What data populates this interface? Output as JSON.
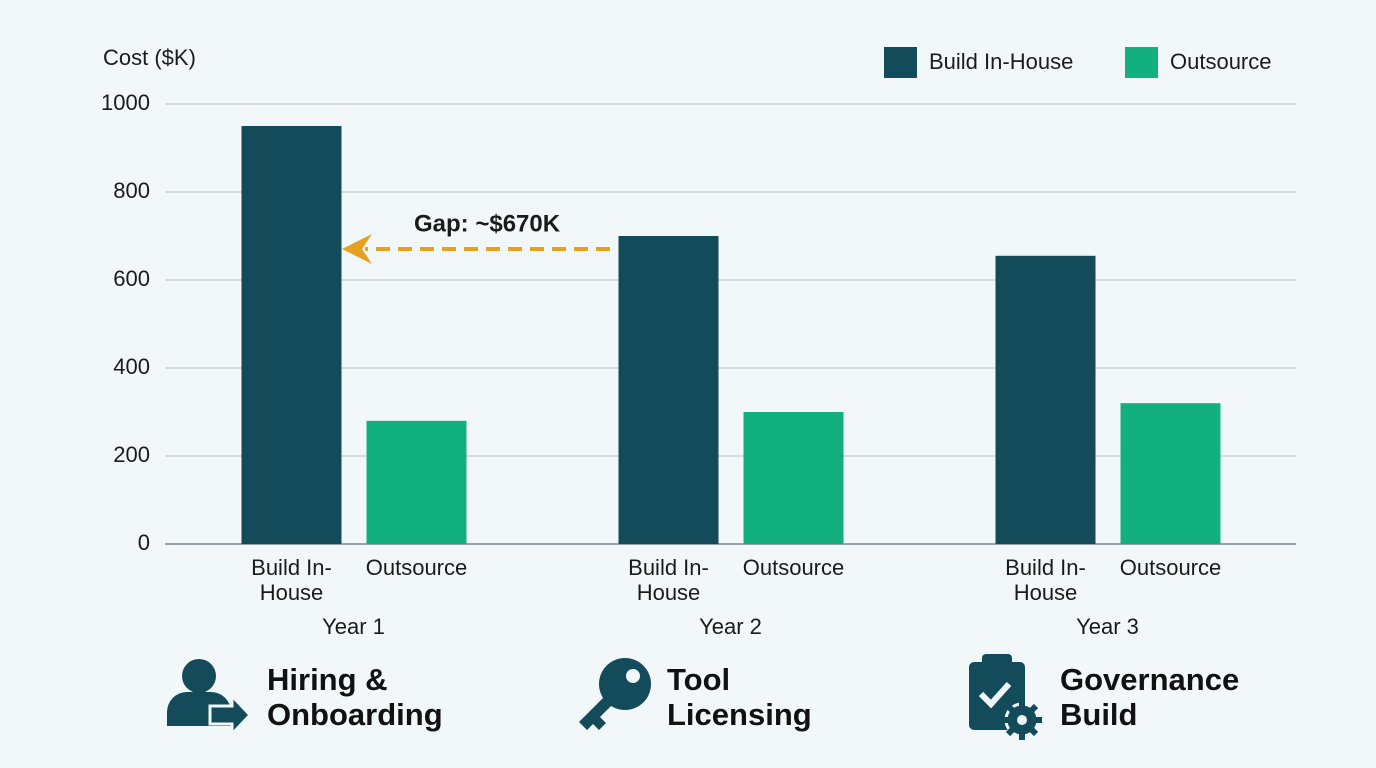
{
  "chart_data": {
    "type": "bar",
    "y_label": "Cost ($K)",
    "categories": [
      "Year 1",
      "Year 2",
      "Year 3"
    ],
    "series": [
      {
        "name": "Build In-House",
        "color": "#134b5a",
        "values": [
          950,
          700,
          655
        ]
      },
      {
        "name": "Outsource",
        "color": "#12b07f",
        "values": [
          280,
          300,
          320
        ]
      }
    ],
    "ylim": [
      0,
      1000
    ],
    "yticks": [
      0,
      200,
      400,
      600,
      800,
      1000
    ],
    "grid": true,
    "legend": "top-right",
    "annotation": "Gap: ~$670K"
  },
  "themes": [
    {
      "label": "Hiring & Onboarding"
    },
    {
      "label": "Tool Licensing"
    },
    {
      "label": "Governance Build"
    }
  ]
}
